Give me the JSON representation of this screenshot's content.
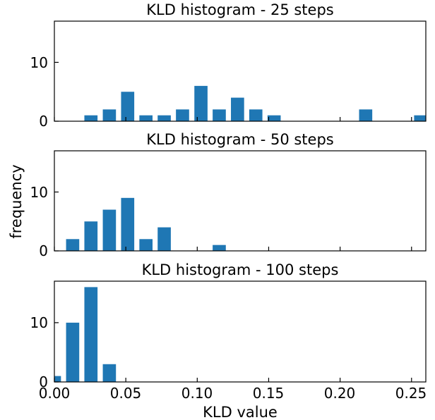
{
  "chart_data": {
    "type": "bar",
    "subplots": [
      {
        "title": "KLD histogram - 25 steps",
        "bin_centers": [
          0.0,
          0.0128,
          0.0256,
          0.0385,
          0.0513,
          0.0641,
          0.0769,
          0.0897,
          0.1026,
          0.1154,
          0.1282,
          0.141,
          0.1538,
          0.1667,
          0.1795,
          0.1923,
          0.2051,
          0.2179,
          0.2308,
          0.2436,
          0.2564
        ],
        "values": [
          0,
          0,
          1,
          2,
          5,
          1,
          1,
          2,
          6,
          2,
          4,
          2,
          1,
          0,
          0,
          0,
          0,
          2,
          0,
          0,
          1
        ],
        "ylim": [
          0,
          17
        ],
        "yticks": [
          "0",
          "10"
        ]
      },
      {
        "title": "KLD histogram - 50 steps",
        "bin_centers": [
          0.0,
          0.0128,
          0.0256,
          0.0385,
          0.0513,
          0.0641,
          0.0769,
          0.0897,
          0.1026,
          0.1154,
          0.1282,
          0.141,
          0.1538,
          0.1667,
          0.1795,
          0.1923,
          0.2051,
          0.2179,
          0.2308,
          0.2436,
          0.2564
        ],
        "values": [
          0,
          2,
          5,
          7,
          9,
          2,
          4,
          0,
          0,
          1,
          0,
          0,
          0,
          0,
          0,
          0,
          0,
          0,
          0,
          0,
          0
        ],
        "ylim": [
          0,
          17
        ],
        "yticks": [
          "0",
          "10"
        ]
      },
      {
        "title": "KLD histogram - 100 steps",
        "bin_centers": [
          0.0,
          0.0128,
          0.0256,
          0.0385,
          0.0513,
          0.0641,
          0.0769,
          0.0897,
          0.1026,
          0.1154,
          0.1282,
          0.141,
          0.1538,
          0.1667,
          0.1795,
          0.1923,
          0.2051,
          0.2179,
          0.2308,
          0.2436,
          0.2564
        ],
        "values": [
          1,
          10,
          16,
          3,
          0,
          0,
          0,
          0,
          0,
          0,
          0,
          0,
          0,
          0,
          0,
          0,
          0,
          0,
          0,
          0,
          0
        ],
        "ylim": [
          0,
          17
        ],
        "yticks": [
          "0",
          "10"
        ]
      }
    ],
    "xlim": [
      0.0,
      0.26
    ],
    "xticks": [
      "0.00",
      "0.05",
      "0.10",
      "0.15",
      "0.20",
      "0.25"
    ],
    "xlabel": "KLD value",
    "ylabel": "frequency",
    "bar_color": "#1f77b4",
    "grid": false,
    "legend": "none"
  }
}
